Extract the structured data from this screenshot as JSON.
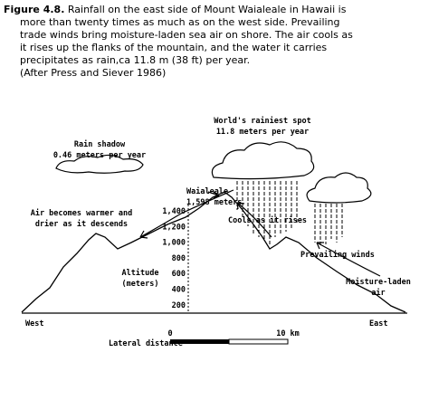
{
  "caption": {
    "label": "Figure 4.8.",
    "lines": [
      "Rainfall on the east side of Mount Waialeale in Hawaii is",
      "more than twenty times as much as on the west side.  Prevailing",
      "trade winds bring moisture-laden sea air on shore.  The air cools as",
      "it rises up the flanks of the mountain, and the water it carries",
      "precipitates as rain,ca 11.8 m (38 ft) per year.",
      "(After Press and Siever 1986)"
    ]
  },
  "labels": {
    "rainiest": [
      "World's rainiest spot",
      "11.8 meters per year"
    ],
    "rain_shadow": [
      "Rain shadow",
      "0.46 meters per year"
    ],
    "peak": [
      "Waialeale",
      "1,598 meters"
    ],
    "descends": [
      "Air becomes warmer and",
      "drier as it descends"
    ],
    "cools": "Cools as it rises",
    "winds": "Prevailing winds",
    "moist_air": [
      "Moisture-laden",
      "air"
    ],
    "west": "West",
    "east": "East"
  },
  "altitude_axis": {
    "title": [
      "Altitude",
      "(meters)"
    ],
    "ticks": [
      "1,400",
      "1,200",
      "1,000",
      "800",
      "600",
      "400",
      "200"
    ]
  },
  "scale_bar": {
    "title": "Lateral distance",
    "start": "0",
    "end": "10 km"
  }
}
